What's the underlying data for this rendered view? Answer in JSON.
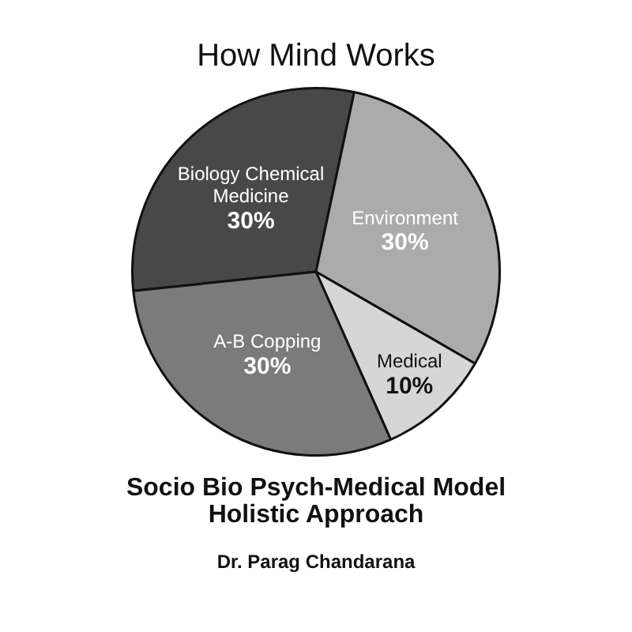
{
  "chart_data": {
    "type": "pie",
    "title": "How Mind Works",
    "subtitle": "Socio Bio Psych-Medical Model\nHolistic Approach",
    "annotations": [
      "Dr. Parag Chandarana"
    ],
    "categories": [
      "Biology Chemical Medicine",
      "Environment",
      "Medical",
      "A-B Copping"
    ],
    "values": [
      30,
      30,
      10,
      30
    ],
    "colors": [
      "#484848",
      "#ababab",
      "#d6d6d6",
      "#7b7b7b"
    ],
    "value_labels": [
      "30%",
      "30%",
      "10%",
      "30%"
    ]
  }
}
